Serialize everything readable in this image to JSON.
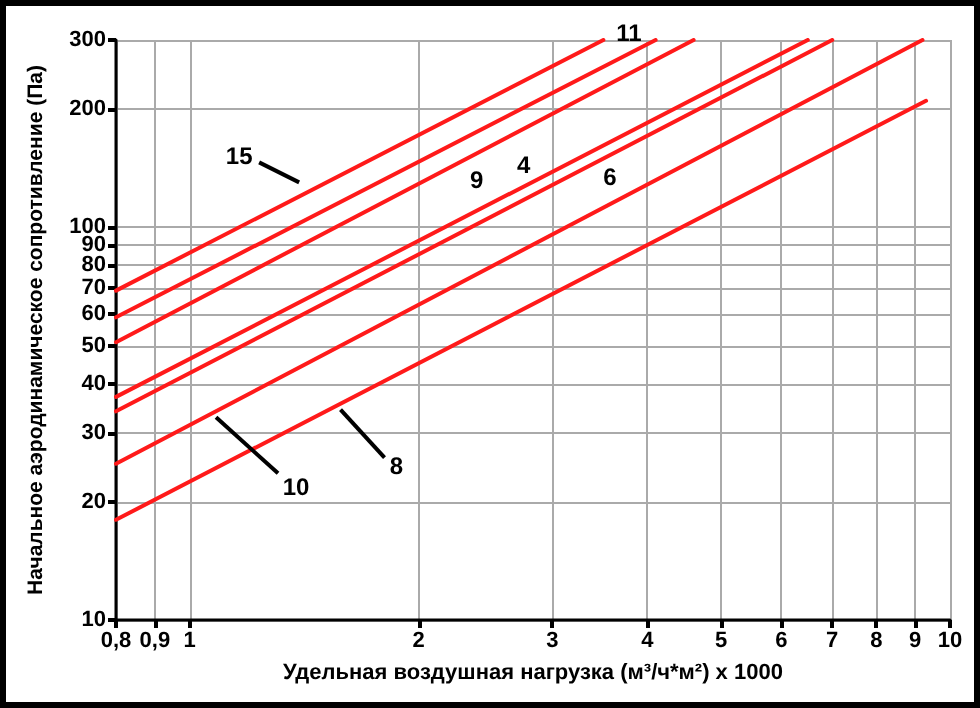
{
  "chart_data": {
    "type": "line",
    "xlabel": "Удельная воздушная нагрузка (м³/ч*м²) x 1000",
    "ylabel": "Начальное аэродинамическое сопротивление (Па)",
    "log": "xy",
    "grid": true,
    "marker": "none",
    "line_style": "solid",
    "legend": false,
    "xlim": [
      0.8,
      10
    ],
    "xticks": [
      {
        "value": 0.8,
        "label": "0,8"
      },
      {
        "value": 0.9,
        "label": "0,9"
      },
      1,
      2,
      3,
      4,
      5,
      6,
      7,
      8,
      9,
      10
    ],
    "ylim": [
      10,
      300
    ],
    "yticks": [
      10,
      20,
      30,
      40,
      50,
      60,
      70,
      80,
      90,
      100,
      200,
      300
    ],
    "series": [
      {
        "name": "15",
        "color": "#ff1a1a",
        "x": [
          0.8,
          3.5
        ],
        "values": [
          69,
          300
        ]
      },
      {
        "name": "11",
        "color": "#ff1a1a",
        "x": [
          0.8,
          4.1
        ],
        "values": [
          59,
          300
        ]
      },
      {
        "name": "9",
        "color": "#ff1a1a",
        "x": [
          0.8,
          4.6
        ],
        "values": [
          51,
          300
        ]
      },
      {
        "name": "4",
        "color": "#ff1a1a",
        "x": [
          0.8,
          6.5
        ],
        "values": [
          37,
          300
        ]
      },
      {
        "name": "6",
        "color": "#ff1a1a",
        "x": [
          0.8,
          7
        ],
        "values": [
          34,
          300
        ]
      },
      {
        "name": "10",
        "color": "#ff1a1a",
        "x": [
          0.8,
          9.2
        ],
        "values": [
          25,
          300
        ]
      },
      {
        "name": "8",
        "color": "#ff1a1a",
        "x": [
          0.8,
          9.3
        ],
        "values": [
          18,
          210
        ]
      }
    ]
  }
}
